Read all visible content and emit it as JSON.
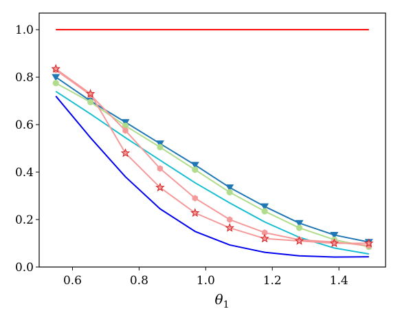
{
  "chart_data": {
    "type": "line",
    "title": "",
    "xlabel": "θ",
    "xlabel_sub": "1",
    "ylabel": "",
    "xlim": [
      0.5,
      1.54
    ],
    "ylim": [
      0.0,
      1.07
    ],
    "x_ticks": [
      0.6,
      0.8,
      1.0,
      1.2,
      1.4
    ],
    "x_tick_labels": [
      "0.6",
      "0.8",
      "1.0",
      "1.2",
      "1.4"
    ],
    "y_ticks": [
      0.0,
      0.2,
      0.4,
      0.6,
      0.8,
      1.0
    ],
    "y_tick_labels": [
      "0.0",
      "0.2",
      "0.4",
      "0.6",
      "0.8",
      "1.0"
    ],
    "grid": false,
    "legend": "none",
    "x": [
      0.55,
      0.654,
      0.759,
      0.863,
      0.968,
      1.072,
      1.177,
      1.281,
      1.386,
      1.49
    ],
    "series": [
      {
        "color": "#ff0000",
        "marker": "none",
        "values": [
          1.0,
          1.0,
          1.0,
          1.0,
          1.0,
          1.0,
          1.0,
          1.0,
          1.0,
          1.0
        ]
      },
      {
        "color": "#1f77b4",
        "marker": "triangle-down",
        "values": [
          0.8,
          0.7,
          0.61,
          0.52,
          0.43,
          0.335,
          0.255,
          0.185,
          0.135,
          0.105
        ]
      },
      {
        "color": "#b0dc8c",
        "marker": "circle",
        "values": [
          0.775,
          0.695,
          0.595,
          0.505,
          0.41,
          0.315,
          0.235,
          0.165,
          0.115,
          0.085
        ]
      },
      {
        "color": "#17becf",
        "marker": "none",
        "values": [
          0.74,
          0.645,
          0.545,
          0.45,
          0.355,
          0.27,
          0.19,
          0.125,
          0.08,
          0.055
        ]
      },
      {
        "color": "#0000ee",
        "marker": "none",
        "values": [
          0.72,
          0.545,
          0.38,
          0.245,
          0.15,
          0.093,
          0.062,
          0.047,
          0.042,
          0.043
        ]
      },
      {
        "color": "#f59a9a",
        "marker": "hexagon",
        "values": [
          0.83,
          0.725,
          0.575,
          0.415,
          0.29,
          0.2,
          0.145,
          0.115,
          0.105,
          0.09
        ]
      },
      {
        "color": "#f59a9a",
        "marker": "star",
        "values": [
          0.835,
          0.73,
          0.48,
          0.335,
          0.228,
          0.165,
          0.12,
          0.11,
          0.1,
          0.1
        ]
      }
    ]
  }
}
